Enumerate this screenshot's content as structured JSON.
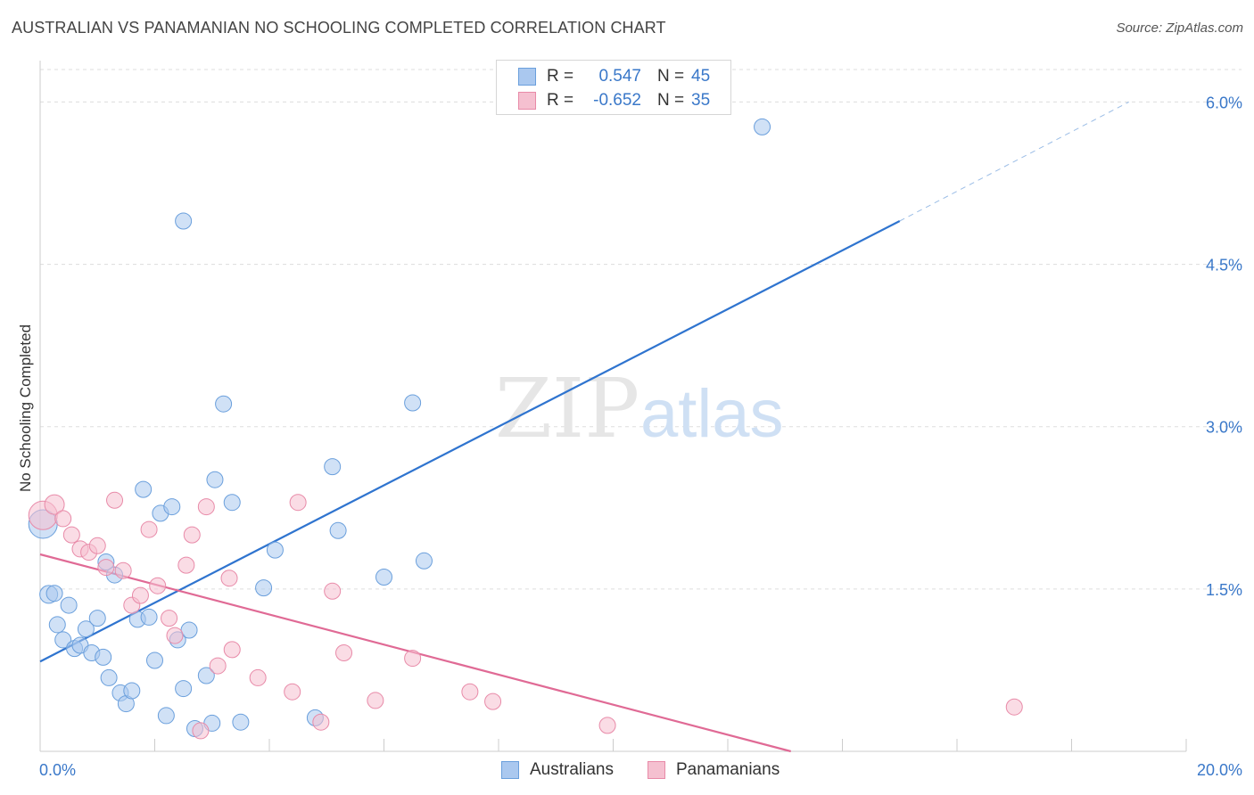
{
  "title": "AUSTRALIAN VS PANAMANIAN NO SCHOOLING COMPLETED CORRELATION CHART",
  "source": "Source: ZipAtlas.com",
  "watermark": {
    "zip": "ZIP",
    "atlas": "atlas"
  },
  "legend": {
    "rows": [
      {
        "r_label": "R =",
        "r_value": "0.547",
        "n_label": "N =",
        "n_value": "45"
      },
      {
        "r_label": "R =",
        "r_value": "-0.652",
        "n_label": "N =",
        "n_value": "35"
      }
    ]
  },
  "bottom_legend": {
    "australians": "Australians",
    "panamanians": "Panamanians"
  },
  "colors": {
    "blue_fill": "#aac8ef",
    "blue_stroke": "#6a9fdc",
    "blue_line": "#2f74cf",
    "pink_fill": "#f5c0d0",
    "pink_stroke": "#e88aa8",
    "pink_line": "#e06a95",
    "axis_text": "#3a78c9",
    "grid": "#dddddd"
  },
  "chart_data": {
    "type": "scatter",
    "title": "AUSTRALIAN VS PANAMANIAN NO SCHOOLING COMPLETED CORRELATION CHART",
    "xlabel": "",
    "ylabel": "No Schooling Completed",
    "xlim": [
      0,
      20
    ],
    "ylim": [
      0,
      6.3
    ],
    "x_tick_labels": [
      "0.0%",
      "20.0%"
    ],
    "y_ticks": [
      1.5,
      3.0,
      4.5,
      6.0
    ],
    "y_tick_labels": [
      "1.5%",
      "3.0%",
      "4.5%",
      "6.0%"
    ],
    "grid": true,
    "series": [
      {
        "name": "Australians",
        "r": 0.547,
        "n": 45,
        "trend": {
          "x0": 0,
          "y0": 0.83,
          "x1": 15.0,
          "y1": 4.9,
          "dash_x1": 19.0,
          "dash_y1": 6.0
        },
        "points": [
          [
            0.05,
            2.1,
            16
          ],
          [
            0.15,
            1.45,
            10
          ],
          [
            0.25,
            1.46,
            9
          ],
          [
            0.3,
            1.17,
            9
          ],
          [
            0.4,
            1.03,
            9
          ],
          [
            0.5,
            1.35,
            9
          ],
          [
            0.6,
            0.95,
            9
          ],
          [
            0.7,
            0.98,
            9
          ],
          [
            0.8,
            1.13,
            9
          ],
          [
            0.9,
            0.91,
            9
          ],
          [
            1.0,
            1.23,
            9
          ],
          [
            1.1,
            0.87,
            9
          ],
          [
            1.2,
            0.68,
            9
          ],
          [
            1.3,
            1.63,
            9
          ],
          [
            1.4,
            0.54,
            9
          ],
          [
            1.5,
            0.44,
            9
          ],
          [
            1.6,
            0.56,
            9
          ],
          [
            1.7,
            1.22,
            9
          ],
          [
            1.8,
            2.42,
            9
          ],
          [
            1.9,
            1.24,
            9
          ],
          [
            2.0,
            0.84,
            9
          ],
          [
            2.1,
            2.2,
            9
          ],
          [
            2.2,
            0.33,
            9
          ],
          [
            2.3,
            2.26,
            9
          ],
          [
            2.4,
            1.03,
            9
          ],
          [
            2.5,
            0.58,
            9
          ],
          [
            2.6,
            1.12,
            9
          ],
          [
            2.7,
            0.21,
            9
          ],
          [
            2.9,
            0.7,
            9
          ],
          [
            3.0,
            0.26,
            9
          ],
          [
            3.05,
            2.51,
            9
          ],
          [
            3.2,
            3.21,
            9
          ],
          [
            3.35,
            2.3,
            9
          ],
          [
            3.5,
            0.27,
            9
          ],
          [
            3.9,
            1.51,
            9
          ],
          [
            4.1,
            1.86,
            9
          ],
          [
            4.8,
            0.31,
            9
          ],
          [
            5.1,
            2.63,
            9
          ],
          [
            5.2,
            2.04,
            9
          ],
          [
            6.0,
            1.61,
            9
          ],
          [
            6.5,
            3.22,
            9
          ],
          [
            6.7,
            1.76,
            9
          ],
          [
            12.6,
            5.77,
            9
          ],
          [
            2.5,
            4.9,
            9
          ],
          [
            1.15,
            1.75,
            9
          ]
        ]
      },
      {
        "name": "Panamanians",
        "r": -0.652,
        "n": 35,
        "trend": {
          "x0": 0,
          "y0": 1.82,
          "x1": 13.1,
          "y1": 0.0
        },
        "points": [
          [
            0.05,
            2.18,
            16
          ],
          [
            0.25,
            2.28,
            11
          ],
          [
            0.4,
            2.15,
            9
          ],
          [
            0.55,
            2.0,
            9
          ],
          [
            0.7,
            1.87,
            9
          ],
          [
            0.85,
            1.84,
            9
          ],
          [
            1.0,
            1.9,
            9
          ],
          [
            1.15,
            1.7,
            9
          ],
          [
            1.3,
            2.32,
            9
          ],
          [
            1.45,
            1.67,
            9
          ],
          [
            1.6,
            1.35,
            9
          ],
          [
            1.75,
            1.44,
            9
          ],
          [
            1.9,
            2.05,
            9
          ],
          [
            2.05,
            1.53,
            9
          ],
          [
            2.25,
            1.23,
            9
          ],
          [
            2.35,
            1.07,
            9
          ],
          [
            2.55,
            1.72,
            9
          ],
          [
            2.65,
            2.0,
            9
          ],
          [
            2.8,
            0.19,
            9
          ],
          [
            2.9,
            2.26,
            9
          ],
          [
            3.1,
            0.79,
            9
          ],
          [
            3.3,
            1.6,
            9
          ],
          [
            3.35,
            0.94,
            9
          ],
          [
            3.8,
            0.68,
            9
          ],
          [
            4.4,
            0.55,
            9
          ],
          [
            4.5,
            2.3,
            9
          ],
          [
            4.9,
            0.27,
            9
          ],
          [
            5.1,
            1.48,
            9
          ],
          [
            5.3,
            0.91,
            9
          ],
          [
            5.85,
            0.47,
            9
          ],
          [
            6.5,
            0.86,
            9
          ],
          [
            7.5,
            0.55,
            9
          ],
          [
            7.9,
            0.46,
            9
          ],
          [
            9.9,
            0.24,
            9
          ],
          [
            17.0,
            0.41,
            9
          ]
        ]
      }
    ]
  }
}
